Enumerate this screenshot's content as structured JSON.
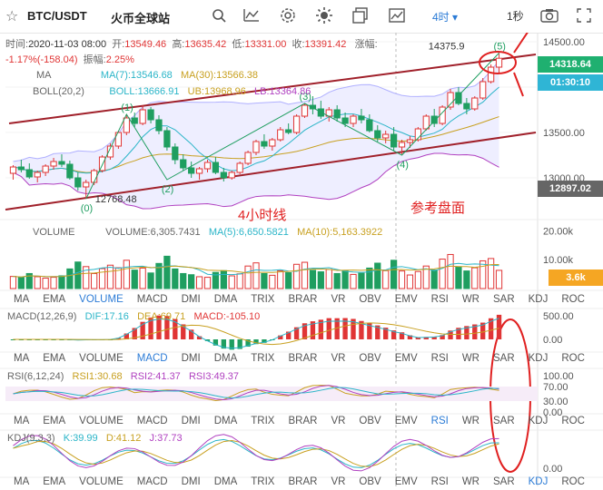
{
  "header": {
    "pair": "BTC/USDT",
    "exchange": "火币全球站",
    "interval": "4时",
    "interval_arrow": "▾",
    "timer": "1秒"
  },
  "ohlc_line": {
    "time_label": "时间:",
    "time": "2020-11-03 08:00",
    "open_label": "开:",
    "open": "13549.46",
    "high_label": "高:",
    "high": "13635.42",
    "low_label": "低:",
    "low": "13331.00",
    "close_label": "收:",
    "close": "13391.42",
    "change_label": "涨幅:",
    "change": "-1.17%(-158.04)",
    "amplitude_label": "振幅:",
    "amplitude": "2.25%"
  },
  "ma_legend": {
    "name": "MA",
    "ma7": "MA(7):13546.68",
    "ma30": "MA(30):13566.38"
  },
  "boll_legend": {
    "name": "BOLL(20,2)",
    "boll": "BOLL:13666.91",
    "ub": "UB:13968.96",
    "lb": "LB:13364.86"
  },
  "price_axis": {
    "labels": [
      "14500.00",
      "14000.00",
      "13500.00",
      "13000.00"
    ],
    "current_price": "14318.64",
    "countdown": "01:30:10",
    "low_marker": "12897.02"
  },
  "annotations": {
    "low_price": "12768.48",
    "high_price": "14375.9",
    "title": "4小时线",
    "subtitle": "参考盘面",
    "wave_labels": [
      "(0)",
      "(1)",
      "(2)",
      "(3)",
      "(4)",
      "(5)"
    ]
  },
  "volume_legend": {
    "name": "VOLUME",
    "value": "VOLUME:6,305.7431",
    "ma5": "MA(5):6,650.5821",
    "ma10": "MA(10):5,163.3922"
  },
  "volume_axis": {
    "labels": [
      "20.00k",
      "10.00k"
    ],
    "current": "3.6k"
  },
  "indicator_tabs": [
    "MA",
    "EMA",
    "VOLUME",
    "MACD",
    "DMI",
    "DMA",
    "TRIX",
    "BRAR",
    "VR",
    "OBV",
    "EMV",
    "RSI",
    "WR",
    "SAR",
    "KDJ",
    "ROC"
  ],
  "macd_legend": {
    "name": "MACD(12,26,9)",
    "dif": "DIF:17.16",
    "dea": "DEA:69.71",
    "macd": "MACD:-105.10"
  },
  "macd_axis": {
    "labels": [
      "500.00",
      "0.00"
    ]
  },
  "rsi_legend": {
    "name": "RSI(6,12,24)",
    "rsi1": "RSI1:30.68",
    "rsi2": "RSI2:41.37",
    "rsi3": "RSI3:49.37"
  },
  "rsi_axis": {
    "labels": [
      "100.00",
      "70.00",
      "30.00",
      "0.00"
    ]
  },
  "kdj_legend": {
    "name": "KDJ(9,3,3)",
    "k": "K:39.99",
    "d": "D:41.12",
    "j": "J:37.73"
  },
  "kdj_axis": {
    "labels": [
      "0.00"
    ]
  },
  "colors": {
    "up": "#e03535",
    "down": "#1f9e60",
    "accent": "#2b7bd6",
    "annotation": "#e02020",
    "channel": "#a0202a",
    "boll_band": "#b0b0ff",
    "ma7": "#2bb5c8",
    "ma30": "#c8a020",
    "lb_line": "#b040c0",
    "tag_current": "#1fb070",
    "tag_countdown": "#2fb5d5",
    "tag_low": "#666666",
    "tag_volume": "#f5a623"
  },
  "chart_data": {
    "type": "candlestick",
    "title": "",
    "y_range": [
      12600,
      14600
    ],
    "y_ticks": [
      13000,
      13500,
      14000,
      14500
    ],
    "candles": [
      [
        13050,
        13140,
        12980,
        13120
      ],
      [
        13120,
        13200,
        13060,
        13090
      ],
      [
        13090,
        13160,
        12990,
        13010
      ],
      [
        13010,
        13080,
        12950,
        13060
      ],
      [
        13060,
        13150,
        13020,
        13130
      ],
      [
        13130,
        13220,
        13090,
        13180
      ],
      [
        13180,
        13260,
        13120,
        13150
      ],
      [
        13150,
        13190,
        12980,
        13000
      ],
      [
        13000,
        13060,
        12860,
        12900
      ],
      [
        12900,
        12980,
        12768,
        12950
      ],
      [
        12950,
        13100,
        12920,
        13080
      ],
      [
        13080,
        13250,
        13060,
        13230
      ],
      [
        13230,
        13380,
        13200,
        13350
      ],
      [
        13350,
        13520,
        13320,
        13500
      ],
      [
        13500,
        13700,
        13470,
        13660
      ],
      [
        13660,
        13720,
        13560,
        13600
      ],
      [
        13600,
        13800,
        13580,
        13750
      ],
      [
        13750,
        13780,
        13600,
        13640
      ],
      [
        13640,
        13690,
        13480,
        13520
      ],
      [
        13520,
        13560,
        13300,
        13340
      ],
      [
        13340,
        13380,
        13150,
        13200
      ],
      [
        13200,
        13260,
        13080,
        13110
      ],
      [
        13110,
        13180,
        13000,
        13050
      ],
      [
        13050,
        13120,
        12980,
        13100
      ],
      [
        13100,
        13200,
        13060,
        13170
      ],
      [
        13170,
        13230,
        13040,
        13060
      ],
      [
        13060,
        13110,
        12960,
        13000
      ],
      [
        13000,
        13080,
        12980,
        13060
      ],
      [
        13060,
        13180,
        13040,
        13160
      ],
      [
        13160,
        13300,
        13140,
        13280
      ],
      [
        13280,
        13420,
        13250,
        13400
      ],
      [
        13400,
        13480,
        13320,
        13350
      ],
      [
        13350,
        13440,
        13300,
        13420
      ],
      [
        13420,
        13560,
        13400,
        13530
      ],
      [
        13530,
        13600,
        13480,
        13500
      ],
      [
        13500,
        13700,
        13480,
        13680
      ],
      [
        13680,
        13820,
        13660,
        13800
      ],
      [
        13800,
        13900,
        13700,
        13760
      ],
      [
        13760,
        13850,
        13650,
        13680
      ],
      [
        13680,
        13780,
        13620,
        13750
      ],
      [
        13750,
        13800,
        13620,
        13660
      ],
      [
        13660,
        13720,
        13560,
        13600
      ],
      [
        13600,
        13700,
        13560,
        13680
      ],
      [
        13680,
        13760,
        13600,
        13640
      ],
      [
        13640,
        13700,
        13500,
        13520
      ],
      [
        13520,
        13580,
        13400,
        13440
      ],
      [
        13440,
        13520,
        13380,
        13480
      ],
      [
        13480,
        13560,
        13300,
        13340
      ],
      [
        13340,
        13420,
        13260,
        13390
      ],
      [
        13390,
        13460,
        13330,
        13420
      ],
      [
        13420,
        13560,
        13400,
        13540
      ],
      [
        13540,
        13700,
        13520,
        13680
      ],
      [
        13680,
        13760,
        13560,
        13600
      ],
      [
        13600,
        13800,
        13580,
        13780
      ],
      [
        13780,
        13980,
        13750,
        13940
      ],
      [
        13940,
        14000,
        13800,
        13820
      ],
      [
        13820,
        13880,
        13700,
        13760
      ],
      [
        13760,
        13900,
        13740,
        13880
      ],
      [
        13880,
        14100,
        13860,
        14060
      ],
      [
        14060,
        14250,
        14040,
        14220
      ],
      [
        14220,
        14376,
        14150,
        14318
      ]
    ],
    "volumes": [
      4200,
      3800,
      5200,
      4100,
      3600,
      3900,
      4400,
      6800,
      9200,
      7600,
      5200,
      6900,
      8100,
      7200,
      9800,
      6400,
      7100,
      5400,
      8700,
      11200,
      6800,
      5200,
      4800,
      4100,
      3900,
      5600,
      6200,
      4400,
      5100,
      7800,
      8900,
      5200,
      4600,
      6100,
      5500,
      8400,
      9100,
      6300,
      5800,
      6600,
      5200,
      6100,
      4900,
      5300,
      7100,
      8800,
      6200,
      9800,
      6100,
      4700,
      5900,
      7800,
      6400,
      10200,
      11800,
      7400,
      6100,
      7200,
      9600,
      10400,
      6305
    ]
  }
}
